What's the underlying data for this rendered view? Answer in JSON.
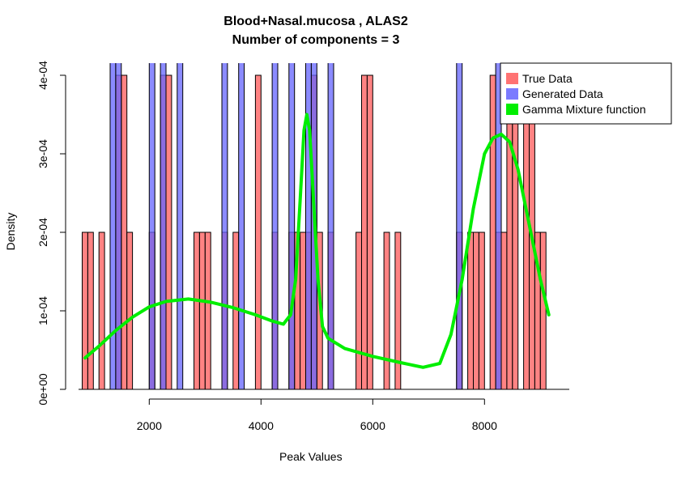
{
  "chart_data": {
    "type": "bar",
    "title": "Blood+Nasal.mucosa , ALAS2",
    "subtitle": "Number of components =  3",
    "xlabel": "Peak Values",
    "ylabel": "Density",
    "xlim": [
      800,
      9200
    ],
    "ylim": [
      0,
      0.0004
    ],
    "x_ticks": [
      2000,
      4000,
      6000,
      8000
    ],
    "y_ticks": [
      {
        "value": 0,
        "label": "0e+00"
      },
      {
        "value": 0.0001,
        "label": "1e-04"
      },
      {
        "value": 0.0002,
        "label": "2e-04"
      },
      {
        "value": 0.0003,
        "label": "3e-04"
      },
      {
        "value": 0.0004,
        "label": "4e-04"
      }
    ],
    "bin_width": 100,
    "series": [
      {
        "name": "True Data",
        "color": "#ff5a5a",
        "bins": [
          {
            "x": 800,
            "y": 0.0002
          },
          {
            "x": 900,
            "y": 0.0002
          },
          {
            "x": 1100,
            "y": 0.0002
          },
          {
            "x": 1400,
            "y": 0.0004
          },
          {
            "x": 1500,
            "y": 0.0004
          },
          {
            "x": 1600,
            "y": 0.0002
          },
          {
            "x": 2000,
            "y": 0.0002
          },
          {
            "x": 2200,
            "y": 0.0004
          },
          {
            "x": 2300,
            "y": 0.0004
          },
          {
            "x": 2800,
            "y": 0.0002
          },
          {
            "x": 2900,
            "y": 0.0002
          },
          {
            "x": 3000,
            "y": 0.0002
          },
          {
            "x": 3300,
            "y": 0.0002
          },
          {
            "x": 3500,
            "y": 0.0002
          },
          {
            "x": 3900,
            "y": 0.0004
          },
          {
            "x": 4200,
            "y": 0.0002
          },
          {
            "x": 4500,
            "y": 0.0002
          },
          {
            "x": 4600,
            "y": 0.0002
          },
          {
            "x": 4700,
            "y": 0.0002
          },
          {
            "x": 4800,
            "y": 0.0002
          },
          {
            "x": 4900,
            "y": 0.0004
          },
          {
            "x": 5000,
            "y": 0.0002
          },
          {
            "x": 5200,
            "y": 0.0002
          },
          {
            "x": 5700,
            "y": 0.0002
          },
          {
            "x": 5800,
            "y": 0.0004
          },
          {
            "x": 5900,
            "y": 0.0004
          },
          {
            "x": 6200,
            "y": 0.0002
          },
          {
            "x": 6400,
            "y": 0.0002
          },
          {
            "x": 7500,
            "y": 0.0002
          },
          {
            "x": 7700,
            "y": 0.0002
          },
          {
            "x": 7800,
            "y": 0.0002
          },
          {
            "x": 7900,
            "y": 0.0002
          },
          {
            "x": 8100,
            "y": 0.0004
          },
          {
            "x": 8200,
            "y": 0.0002
          },
          {
            "x": 8300,
            "y": 0.0002
          },
          {
            "x": 8400,
            "y": 0.0004
          },
          {
            "x": 8500,
            "y": 0.0004
          },
          {
            "x": 8700,
            "y": 0.0004
          },
          {
            "x": 8800,
            "y": 0.0004
          },
          {
            "x": 8900,
            "y": 0.0002
          },
          {
            "x": 9000,
            "y": 0.0002
          }
        ]
      },
      {
        "name": "Generated Data",
        "color": "#6464ff",
        "bins": [
          {
            "x": 1300,
            "y": 0.0006
          },
          {
            "x": 1400,
            "y": 0.0006
          },
          {
            "x": 2000,
            "y": 0.0006
          },
          {
            "x": 2200,
            "y": 0.0006
          },
          {
            "x": 2500,
            "y": 0.0006
          },
          {
            "x": 3300,
            "y": 0.0006
          },
          {
            "x": 3600,
            "y": 0.0006
          },
          {
            "x": 4200,
            "y": 0.0006
          },
          {
            "x": 4500,
            "y": 0.0006
          },
          {
            "x": 4800,
            "y": 0.0006
          },
          {
            "x": 4900,
            "y": 0.0006
          },
          {
            "x": 5200,
            "y": 0.0006
          },
          {
            "x": 7500,
            "y": 0.0006
          },
          {
            "x": 8200,
            "y": 0.0006
          }
        ]
      }
    ],
    "curve": {
      "name": "Gamma Mixture function",
      "color": "#00ee00",
      "points": [
        [
          850,
          4e-05
        ],
        [
          1100,
          5.5e-05
        ],
        [
          1400,
          7.5e-05
        ],
        [
          1700,
          9.2e-05
        ],
        [
          2000,
          0.000105
        ],
        [
          2300,
          0.000112
        ],
        [
          2700,
          0.000115
        ],
        [
          3100,
          0.000111
        ],
        [
          3500,
          0.000104
        ],
        [
          3900,
          9.5e-05
        ],
        [
          4200,
          8.7e-05
        ],
        [
          4400,
          8.3e-05
        ],
        [
          4530,
          9.5e-05
        ],
        [
          4620,
          0.00014
        ],
        [
          4700,
          0.00024
        ],
        [
          4770,
          0.00033
        ],
        [
          4820,
          0.00035
        ],
        [
          4870,
          0.00033
        ],
        [
          4940,
          0.00024
        ],
        [
          5020,
          0.00014
        ],
        [
          5100,
          8e-05
        ],
        [
          5200,
          6.5e-05
        ],
        [
          5500,
          5.2e-05
        ],
        [
          6000,
          4.2e-05
        ],
        [
          6500,
          3.4e-05
        ],
        [
          6900,
          2.8e-05
        ],
        [
          7200,
          3.3e-05
        ],
        [
          7400,
          7e-05
        ],
        [
          7600,
          0.00014
        ],
        [
          7800,
          0.00023
        ],
        [
          8000,
          0.0003
        ],
        [
          8150,
          0.00032
        ],
        [
          8300,
          0.000325
        ],
        [
          8450,
          0.000315
        ],
        [
          8600,
          0.00028
        ],
        [
          8800,
          0.00021
        ],
        [
          9000,
          0.00014
        ],
        [
          9150,
          9.5e-05
        ]
      ]
    },
    "legend": {
      "position": "top-right",
      "items": [
        {
          "label": "True Data",
          "color": "#ff5a5a"
        },
        {
          "label": "Generated Data",
          "color": "#6464ff"
        },
        {
          "label": "Gamma Mixture function",
          "color": "#00ee00"
        }
      ]
    }
  }
}
